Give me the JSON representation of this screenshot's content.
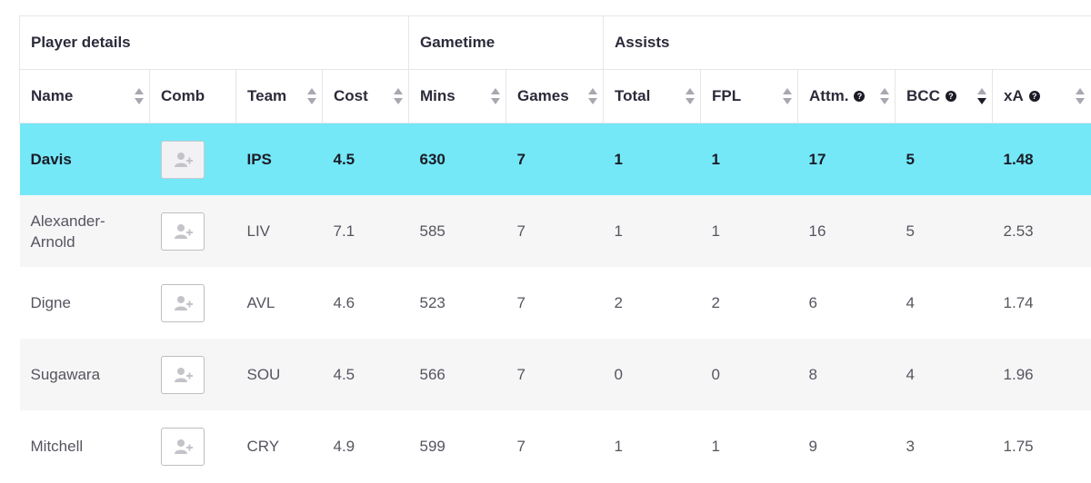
{
  "groups": {
    "player": "Player details",
    "gametime": "Gametime",
    "assists": "Assists"
  },
  "columns": {
    "name": "Name",
    "comb": "Comb",
    "team": "Team",
    "cost": "Cost",
    "mins": "Mins",
    "games": "Games",
    "total": "Total",
    "fpl": "FPL",
    "attm": "Attm.",
    "bcc": "BCC",
    "xa": "xA"
  },
  "help_glyph": "?",
  "rows": [
    {
      "name": "Davis",
      "team": "IPS",
      "cost": "4.5",
      "mins": "630",
      "games": "7",
      "total": "1",
      "fpl": "1",
      "attm": "17",
      "bcc": "5",
      "xa": "1.48"
    },
    {
      "name": "Alexander-Arnold",
      "team": "LIV",
      "cost": "7.1",
      "mins": "585",
      "games": "7",
      "total": "1",
      "fpl": "1",
      "attm": "16",
      "bcc": "5",
      "xa": "2.53"
    },
    {
      "name": "Digne",
      "team": "AVL",
      "cost": "4.6",
      "mins": "523",
      "games": "7",
      "total": "2",
      "fpl": "2",
      "attm": "6",
      "bcc": "4",
      "xa": "1.74"
    },
    {
      "name": "Sugawara",
      "team": "SOU",
      "cost": "4.5",
      "mins": "566",
      "games": "7",
      "total": "0",
      "fpl": "0",
      "attm": "8",
      "bcc": "4",
      "xa": "1.96"
    },
    {
      "name": "Mitchell",
      "team": "CRY",
      "cost": "4.9",
      "mins": "599",
      "games": "7",
      "total": "1",
      "fpl": "1",
      "attm": "9",
      "bcc": "3",
      "xa": "1.75"
    }
  ],
  "sorted_column": "bcc",
  "colors": {
    "highlight": "#74e8f7",
    "alt_row": "#f6f6f7"
  },
  "icons": {
    "comb": "add-user-icon",
    "sort": "sort-arrows-icon",
    "help": "help-icon"
  }
}
